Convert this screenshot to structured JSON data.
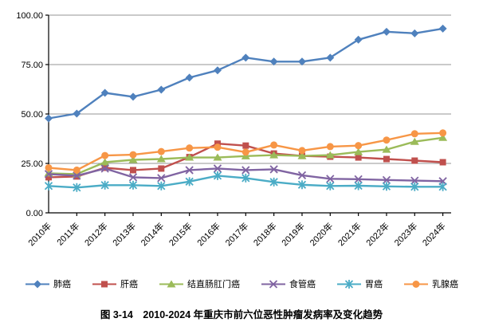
{
  "figure": {
    "caption": "图 3-14　2010-2024 年重庆市前六位恶性肿瘤发病率及变化趋势"
  },
  "chart_data": {
    "type": "line",
    "title": "",
    "xlabel": "",
    "ylabel": "",
    "ylim": [
      0,
      100
    ],
    "ytick_step": 25,
    "ytick_labels": [
      "0.00",
      "25.00",
      "50.00",
      "75.00",
      "100.00"
    ],
    "grid": true,
    "legend_position": "bottom",
    "axis_color": "#000000",
    "gridline_color": "#969696",
    "categories": [
      "2010年",
      "2011年",
      "2012年",
      "2013年",
      "2014年",
      "2015年",
      "2016年",
      "2017年",
      "2018年",
      "2019年",
      "2020年",
      "2021年",
      "2022年",
      "2023年",
      "2024年"
    ],
    "series": [
      {
        "id": "lung-cancer",
        "name": "肺癌",
        "color": "#4F81BD",
        "marker": "diamond",
        "values": [
          47.8,
          50.2,
          60.7,
          58.7,
          62.3,
          68.4,
          72.1,
          78.5,
          76.5,
          76.5,
          78.5,
          87.6,
          91.6,
          90.8,
          93.2
        ]
      },
      {
        "id": "liver-cancer",
        "name": "肝癌",
        "color": "#C0504D",
        "marker": "square",
        "values": [
          18.0,
          18.4,
          22.8,
          21.6,
          22.4,
          28.2,
          35.0,
          34.0,
          30.0,
          28.8,
          28.4,
          28.0,
          27.2,
          26.4,
          25.6
        ]
      },
      {
        "id": "colorectal-anal-cancer",
        "name": "结直肠肛门癌",
        "color": "#9BBB59",
        "marker": "triangle",
        "values": [
          20.0,
          19.6,
          25.6,
          26.8,
          27.2,
          28.0,
          28.0,
          28.7,
          29.2,
          28.8,
          29.2,
          30.8,
          32.0,
          36.0,
          38.0
        ]
      },
      {
        "id": "esophageal-cancer",
        "name": "食管癌",
        "color": "#8064A2",
        "marker": "x",
        "values": [
          19.6,
          18.8,
          22.4,
          18.0,
          17.6,
          21.6,
          22.4,
          21.6,
          22.0,
          19.0,
          17.2,
          17.0,
          16.6,
          16.3,
          16.0
        ]
      },
      {
        "id": "stomach-cancer",
        "name": "胃癌",
        "color": "#4BACC6",
        "marker": "asterisk",
        "values": [
          13.6,
          12.8,
          14.0,
          14.0,
          13.6,
          15.8,
          18.8,
          17.6,
          15.6,
          14.2,
          13.6,
          13.7,
          13.4,
          13.2,
          13.2
        ]
      },
      {
        "id": "breast-cancer",
        "name": "乳腺癌",
        "color": "#F79646",
        "marker": "circle",
        "values": [
          22.8,
          21.6,
          29.0,
          29.4,
          31.0,
          32.8,
          33.2,
          30.7,
          34.3,
          31.5,
          33.5,
          34.0,
          36.8,
          40.0,
          40.4
        ]
      }
    ]
  }
}
